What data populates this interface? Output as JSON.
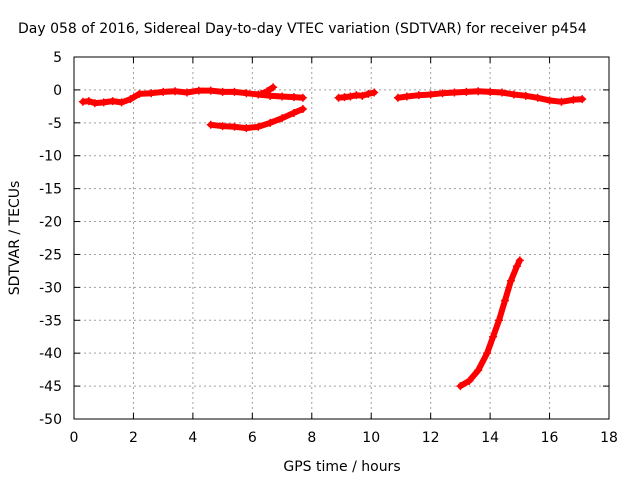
{
  "chart_data": {
    "type": "scatter",
    "title": "Day 058 of 2016, Sidereal Day-to-day VTEC variation (SDTVAR) for receiver p454",
    "xlabel": "GPS time / hours",
    "ylabel": "SDTVAR / TECUs",
    "xlim": [
      0,
      18
    ],
    "ylim": [
      -50,
      5
    ],
    "xticks": [
      "0",
      "2",
      "4",
      "6",
      "8",
      "10",
      "12",
      "14",
      "16",
      "18"
    ],
    "yticks": [
      "5",
      "0",
      "-5",
      "-10",
      "-15",
      "-20",
      "-25",
      "-30",
      "-35",
      "-40",
      "-45",
      "-50"
    ],
    "grid": true,
    "marker": "plus",
    "color": "#ff0000",
    "series": [
      {
        "x": [
          0.3,
          0.5,
          0.7,
          1.0,
          1.3,
          1.6,
          1.9,
          2.2,
          2.6,
          3.0,
          3.4,
          3.8,
          4.2,
          4.6,
          5.0,
          5.4,
          5.8,
          6.2,
          6.6,
          7.0,
          7.4,
          7.7
        ],
        "y": [
          -1.8,
          -1.7,
          -2.0,
          -1.9,
          -1.7,
          -1.9,
          -1.4,
          -0.6,
          -0.5,
          -0.3,
          -0.2,
          -0.4,
          -0.1,
          -0.1,
          -0.3,
          -0.3,
          -0.5,
          -0.7,
          -0.9,
          -1.0,
          -1.1,
          -1.2
        ]
      },
      {
        "x": [
          4.6,
          5.0,
          5.4,
          5.8,
          6.2,
          6.6,
          7.0,
          7.4,
          7.7
        ],
        "y": [
          -5.3,
          -5.5,
          -5.6,
          -5.8,
          -5.6,
          -5.0,
          -4.3,
          -3.5,
          -2.9
        ]
      },
      {
        "x": [
          6.3,
          6.5,
          6.7
        ],
        "y": [
          -0.6,
          -0.2,
          0.4
        ]
      },
      {
        "x": [
          8.9,
          9.1,
          9.3,
          9.5,
          9.7,
          9.9,
          10.1
        ],
        "y": [
          -1.2,
          -1.1,
          -1.0,
          -0.8,
          -0.9,
          -0.6,
          -0.4
        ]
      },
      {
        "x": [
          10.9,
          11.2,
          11.6,
          12.0,
          12.4,
          12.8,
          13.2,
          13.6,
          14.0,
          14.4,
          14.8,
          15.2,
          15.6,
          16.0,
          16.4,
          16.8,
          17.1
        ],
        "y": [
          -1.2,
          -1.0,
          -0.8,
          -0.7,
          -0.5,
          -0.4,
          -0.3,
          -0.2,
          -0.3,
          -0.4,
          -0.7,
          -0.9,
          -1.2,
          -1.6,
          -1.8,
          -1.5,
          -1.4
        ]
      },
      {
        "x": [
          13.0,
          13.3,
          13.6,
          13.9,
          14.1,
          14.3,
          14.5,
          14.7,
          14.9,
          15.0
        ],
        "y": [
          -45.0,
          -44.2,
          -42.6,
          -40.0,
          -37.5,
          -35.0,
          -32.0,
          -29.0,
          -26.8,
          -25.9
        ]
      }
    ]
  }
}
